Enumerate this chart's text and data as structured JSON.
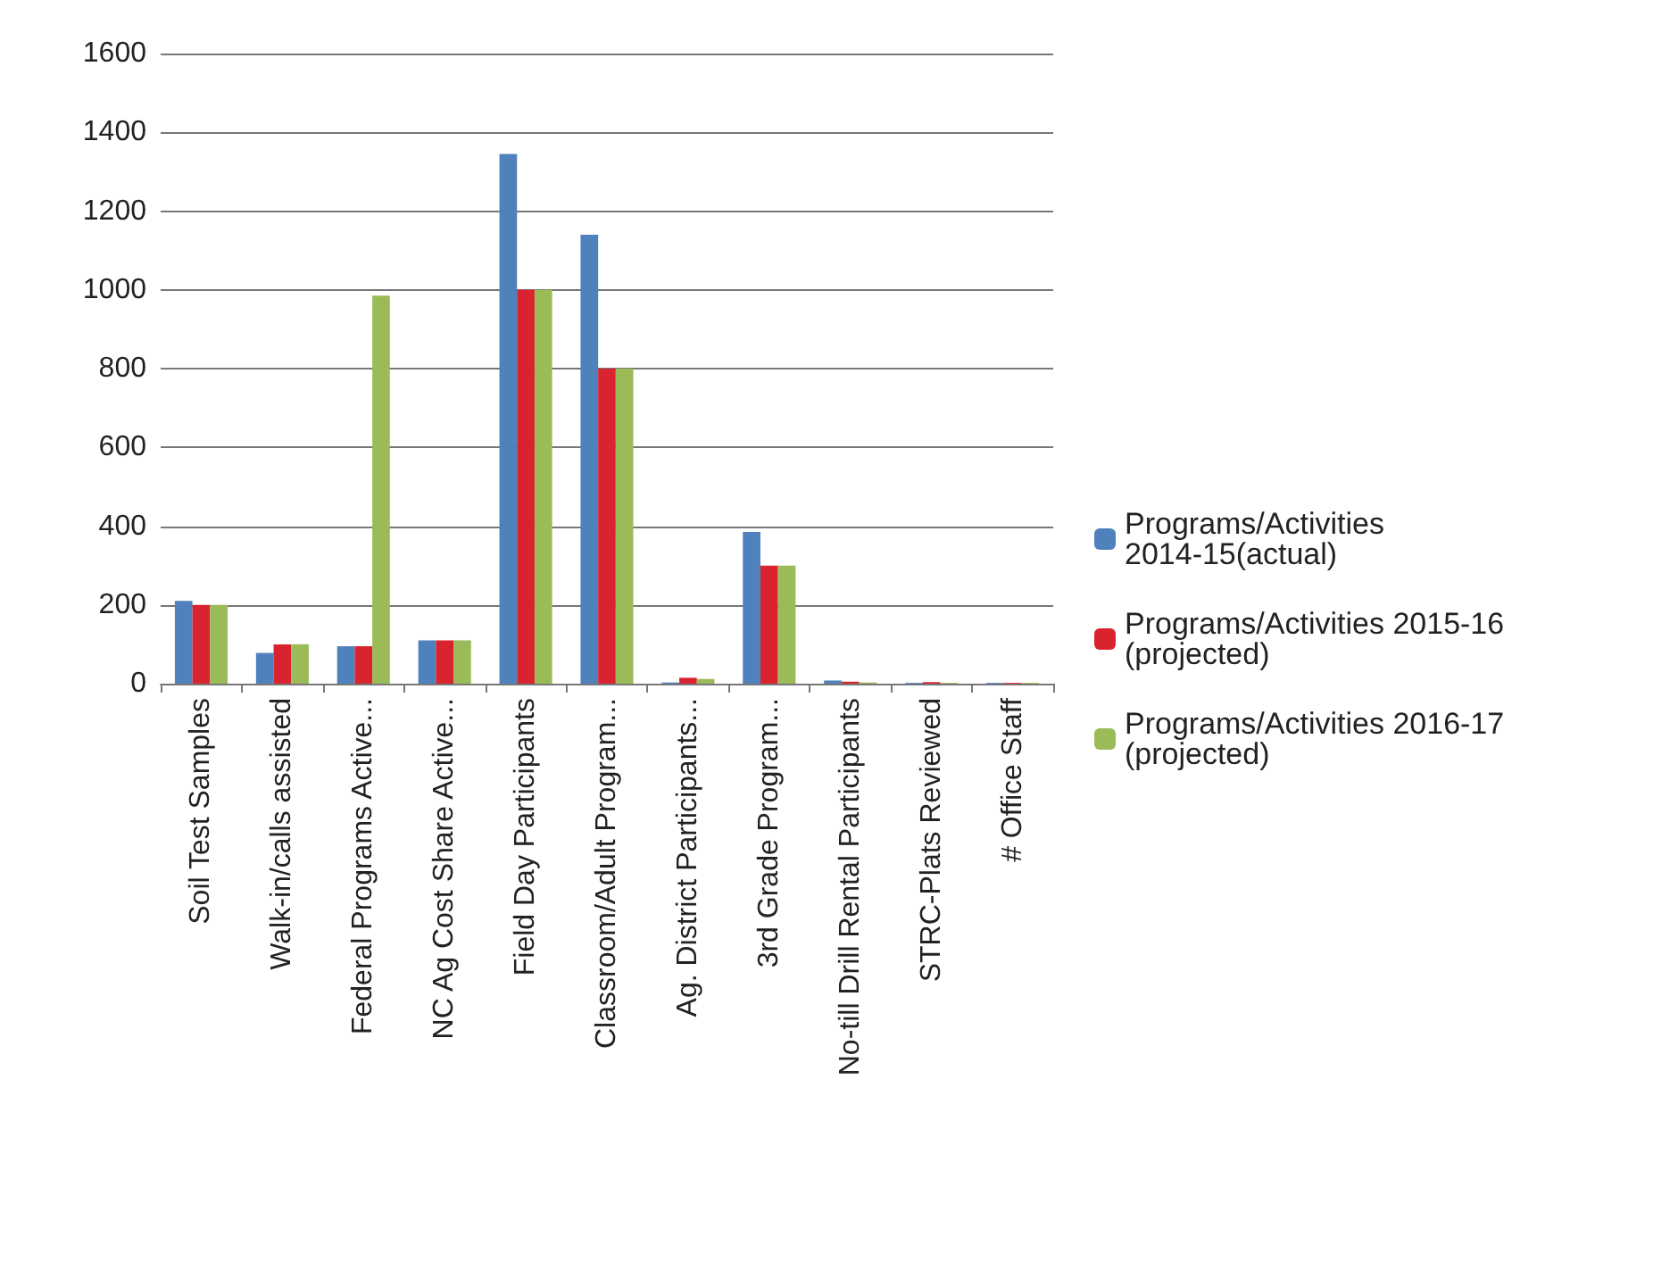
{
  "chart_data": {
    "type": "bar",
    "categories": [
      "Soil Test Samples",
      "Walk-in/calls assisted",
      "Federal Programs Active...",
      "NC Ag Cost Share Active...",
      "Field Day Participants",
      "Classroom/Adult Program...",
      "Ag. District Participants...",
      "3rd Grade Program...",
      "No-till Drill Rental Participants",
      "STRC-Plats Reviewed",
      "# Office Staff"
    ],
    "series": [
      {
        "name": "Programs/Activities 2014-15(actual)",
        "color": "#4f81bd",
        "values": [
          210,
          78,
          95,
          110,
          1345,
          1140,
          3,
          385,
          8,
          2,
          2
        ]
      },
      {
        "name": "Programs/Activities 2015-16 (projected)",
        "color": "#d9232e",
        "values": [
          200,
          100,
          95,
          110,
          1000,
          800,
          15,
          300,
          5,
          4,
          2
        ]
      },
      {
        "name": "Programs/Activities 2016-17 (projected)",
        "color": "#9bbb59",
        "values": [
          200,
          100,
          985,
          110,
          1000,
          800,
          12,
          300,
          3,
          2,
          2
        ]
      }
    ],
    "ylim": [
      0,
      1600
    ],
    "yticks": [
      0,
      200,
      400,
      600,
      800,
      1000,
      1200,
      1400,
      1600
    ],
    "grid": "y",
    "legend": "right"
  }
}
